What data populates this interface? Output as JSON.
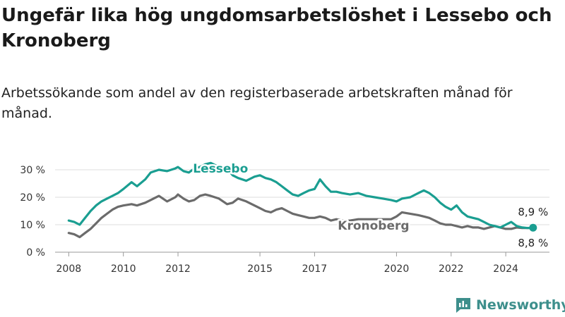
{
  "chart_data": {
    "type": "line",
    "title": "Ungefär lika hög ungdomsarbetslöshet i Lessebo och Kronoberg",
    "subtitle": "Arbetssökande som andel av den registerbaserade arbetskraften månad för månad.",
    "xlim": [
      2007.5,
      2025.6
    ],
    "ylim": [
      0,
      30
    ],
    "y_ticks": [
      0,
      10,
      20,
      30
    ],
    "y_tick_labels": [
      "0 %",
      "10 %",
      "20 %",
      "30 %"
    ],
    "x_ticks": [
      2008,
      2010,
      2012,
      2015,
      2017,
      2020,
      2022,
      2024
    ],
    "x_tick_labels": [
      "2008",
      "2010",
      "2012",
      "2015",
      "2017",
      "2020",
      "2022",
      "2024"
    ],
    "grid": true,
    "legend": "inline labels",
    "series": [
      {
        "name": "Lessebo",
        "color": "#1a9e91",
        "end_label": "8,9 %",
        "x": [
          2008.0,
          2008.2,
          2008.4,
          2008.6,
          2008.8,
          2009.0,
          2009.2,
          2009.4,
          2009.6,
          2009.8,
          2010.0,
          2010.3,
          2010.5,
          2010.8,
          2011.0,
          2011.3,
          2011.6,
          2011.9,
          2012.0,
          2012.2,
          2012.4,
          2012.6,
          2012.8,
          2013.0,
          2013.2,
          2013.5,
          2013.8,
          2014.0,
          2014.2,
          2014.5,
          2014.8,
          2015.0,
          2015.2,
          2015.4,
          2015.6,
          2015.8,
          2016.0,
          2016.2,
          2016.4,
          2016.6,
          2016.8,
          2017.0,
          2017.2,
          2017.4,
          2017.6,
          2017.8,
          2018.0,
          2018.3,
          2018.6,
          2018.9,
          2019.2,
          2019.5,
          2019.8,
          2020.0,
          2020.2,
          2020.5,
          2020.8,
          2021.0,
          2021.2,
          2021.4,
          2021.6,
          2021.8,
          2022.0,
          2022.2,
          2022.4,
          2022.6,
          2022.8,
          2023.0,
          2023.2,
          2023.4,
          2023.6,
          2023.8,
          2024.0,
          2024.2,
          2024.4,
          2024.6,
          2024.8,
          2025.0
        ],
        "y": [
          11.5,
          11.0,
          10.0,
          12.5,
          15.0,
          17.0,
          18.5,
          19.5,
          20.5,
          21.5,
          23.0,
          25.5,
          24.0,
          26.5,
          29.0,
          30.0,
          29.5,
          30.5,
          31.0,
          29.5,
          29.0,
          30.5,
          31.0,
          32.0,
          32.5,
          31.0,
          30.5,
          28.0,
          27.0,
          26.0,
          27.5,
          28.0,
          27.0,
          26.5,
          25.5,
          24.0,
          22.5,
          21.0,
          20.5,
          21.5,
          22.5,
          23.0,
          26.5,
          24.0,
          22.0,
          22.0,
          21.5,
          21.0,
          21.5,
          20.5,
          20.0,
          19.5,
          19.0,
          18.5,
          19.5,
          20.0,
          21.5,
          22.5,
          21.5,
          20.0,
          18.0,
          16.5,
          15.5,
          17.0,
          14.5,
          13.0,
          12.5,
          12.0,
          11.0,
          10.0,
          9.5,
          9.0,
          10.0,
          11.0,
          9.5,
          9.0,
          8.8,
          8.9
        ]
      },
      {
        "name": "Kronoberg",
        "color": "#6b6b6b",
        "end_label": "8,8 %",
        "x": [
          2008.0,
          2008.2,
          2008.4,
          2008.6,
          2008.8,
          2009.0,
          2009.2,
          2009.4,
          2009.6,
          2009.8,
          2010.0,
          2010.3,
          2010.5,
          2010.8,
          2011.0,
          2011.3,
          2011.6,
          2011.9,
          2012.0,
          2012.2,
          2012.4,
          2012.6,
          2012.8,
          2013.0,
          2013.2,
          2013.5,
          2013.8,
          2014.0,
          2014.2,
          2014.5,
          2014.8,
          2015.0,
          2015.2,
          2015.4,
          2015.6,
          2015.8,
          2016.0,
          2016.2,
          2016.4,
          2016.6,
          2016.8,
          2017.0,
          2017.2,
          2017.4,
          2017.6,
          2017.8,
          2018.0,
          2018.3,
          2018.6,
          2018.9,
          2019.2,
          2019.5,
          2019.8,
          2020.0,
          2020.2,
          2020.5,
          2020.8,
          2021.0,
          2021.2,
          2021.4,
          2021.6,
          2021.8,
          2022.0,
          2022.2,
          2022.4,
          2022.6,
          2022.8,
          2023.0,
          2023.2,
          2023.4,
          2023.6,
          2023.8,
          2024.0,
          2024.2,
          2024.4,
          2024.6,
          2024.8,
          2025.0
        ],
        "y": [
          7.0,
          6.5,
          5.5,
          7.0,
          8.5,
          10.5,
          12.5,
          14.0,
          15.5,
          16.5,
          17.0,
          17.5,
          17.0,
          18.0,
          19.0,
          20.5,
          18.5,
          20.0,
          21.0,
          19.5,
          18.5,
          19.0,
          20.5,
          21.0,
          20.5,
          19.5,
          17.5,
          18.0,
          19.5,
          18.5,
          17.0,
          16.0,
          15.0,
          14.5,
          15.5,
          16.0,
          15.0,
          14.0,
          13.5,
          13.0,
          12.5,
          12.5,
          13.0,
          12.5,
          11.5,
          12.0,
          11.5,
          11.5,
          12.0,
          12.0,
          12.0,
          12.0,
          12.0,
          13.0,
          14.5,
          14.0,
          13.5,
          13.0,
          12.5,
          11.5,
          10.5,
          10.0,
          10.0,
          9.5,
          9.0,
          9.5,
          9.0,
          9.0,
          8.5,
          9.0,
          9.5,
          9.0,
          8.5,
          8.5,
          9.0,
          8.8,
          8.8,
          8.8
        ]
      }
    ]
  },
  "brand": {
    "name": "Newsworthy",
    "color": "#3d8f8c"
  }
}
